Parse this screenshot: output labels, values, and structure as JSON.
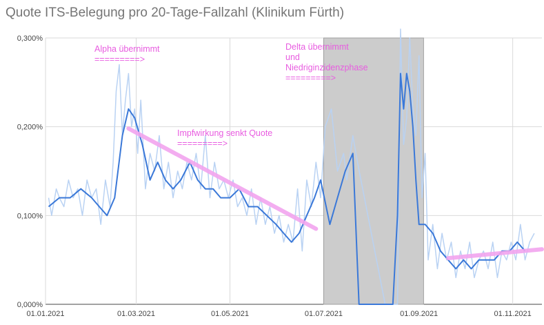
{
  "chart_data": {
    "type": "line",
    "title": "Quote ITS-Belegung pro 20-Tage-Fallzahl (Klinikum Fürth)",
    "xlabel": "",
    "ylabel": "",
    "ylim": [
      0,
      0.3
    ],
    "y_ticks": [
      "0,000%",
      "0,100%",
      "0,200%",
      "0,300%"
    ],
    "y_tick_values": [
      0,
      0.1,
      0.2,
      0.3
    ],
    "x_ticks": [
      "01.01.2021",
      "01.03.2021",
      "01.05.2021",
      "01.07.2021",
      "01.09.2021",
      "01.11.2021"
    ],
    "x_tick_dates": [
      "2021-01-01",
      "2021-03-01",
      "2021-05-01",
      "2021-07-01",
      "2021-09-01",
      "2021-11-01"
    ],
    "xlim": [
      "2021-01-01",
      "2021-11-20"
    ],
    "grid": true,
    "legend": "none",
    "colors": {
      "raw": "#b9d2f3",
      "smooth": "#3a78d8",
      "trend": "#f2a5ef",
      "annotation": "#e85ce0",
      "shade": "#cccccc",
      "shade_border": "#9e9e9e",
      "grid": "#d9d9d9"
    },
    "shaded_period": {
      "start": "2021-07-01",
      "end": "2021-09-04"
    },
    "series": [
      {
        "role": "raw",
        "x": [
          "2021-01-03",
          "2021-01-05",
          "2021-01-08",
          "2021-01-10",
          "2021-01-13",
          "2021-01-16",
          "2021-01-19",
          "2021-01-22",
          "2021-01-25",
          "2021-01-28",
          "2021-01-31",
          "2021-02-03",
          "2021-02-06",
          "2021-02-09",
          "2021-02-12",
          "2021-02-14",
          "2021-02-16",
          "2021-02-18",
          "2021-02-20",
          "2021-02-22",
          "2021-02-24",
          "2021-02-26",
          "2021-02-28",
          "2021-03-02",
          "2021-03-04",
          "2021-03-07",
          "2021-03-10",
          "2021-03-13",
          "2021-03-16",
          "2021-03-19",
          "2021-03-22",
          "2021-03-25",
          "2021-03-28",
          "2021-03-31",
          "2021-04-03",
          "2021-04-06",
          "2021-04-09",
          "2021-04-12",
          "2021-04-15",
          "2021-04-18",
          "2021-04-21",
          "2021-04-24",
          "2021-04-27",
          "2021-04-30",
          "2021-05-03",
          "2021-05-06",
          "2021-05-09",
          "2021-05-12",
          "2021-05-15",
          "2021-05-18",
          "2021-05-21",
          "2021-05-24",
          "2021-05-27",
          "2021-05-30",
          "2021-06-02",
          "2021-06-05",
          "2021-06-08",
          "2021-06-11",
          "2021-06-14",
          "2021-06-17",
          "2021-06-20",
          "2021-06-23",
          "2021-06-26",
          "2021-06-29",
          "2021-07-02",
          "2021-07-06",
          "2021-07-10",
          "2021-07-14",
          "2021-07-16",
          "2021-07-20",
          "2021-07-23",
          "2021-08-10",
          "2021-08-18",
          "2021-08-20",
          "2021-08-22",
          "2021-08-24",
          "2021-08-26",
          "2021-08-28",
          "2021-08-30",
          "2021-09-01",
          "2021-09-03",
          "2021-09-05",
          "2021-09-07",
          "2021-09-10",
          "2021-09-13",
          "2021-09-16",
          "2021-09-19",
          "2021-09-22",
          "2021-09-25",
          "2021-09-28",
          "2021-10-01",
          "2021-10-04",
          "2021-10-07",
          "2021-10-10",
          "2021-10-13",
          "2021-10-16",
          "2021-10-19",
          "2021-10-22",
          "2021-10-25",
          "2021-10-28",
          "2021-10-31",
          "2021-11-03",
          "2021-11-06",
          "2021-11-09",
          "2021-11-12",
          "2021-11-15"
        ],
        "y": [
          0.12,
          0.1,
          0.13,
          0.12,
          0.11,
          0.14,
          0.12,
          0.13,
          0.1,
          0.14,
          0.12,
          0.13,
          0.09,
          0.14,
          0.11,
          0.16,
          0.24,
          0.27,
          0.19,
          0.23,
          0.26,
          0.2,
          0.22,
          0.17,
          0.23,
          0.13,
          0.17,
          0.15,
          0.19,
          0.13,
          0.16,
          0.12,
          0.15,
          0.13,
          0.16,
          0.14,
          0.17,
          0.13,
          0.19,
          0.12,
          0.16,
          0.13,
          0.14,
          0.12,
          0.14,
          0.11,
          0.12,
          0.1,
          0.13,
          0.09,
          0.12,
          0.09,
          0.11,
          0.08,
          0.1,
          0.07,
          0.09,
          0.07,
          0.13,
          0.06,
          0.14,
          0.11,
          0.16,
          0.12,
          0.2,
          0.22,
          0.15,
          0.17,
          0.14,
          0.19,
          0.16,
          0.0,
          0.0,
          0.31,
          0.18,
          0.21,
          0.3,
          0.22,
          0.19,
          0.28,
          0.12,
          0.17,
          0.05,
          0.09,
          0.04,
          0.08,
          0.05,
          0.07,
          0.03,
          0.06,
          0.04,
          0.07,
          0.03,
          0.05,
          0.06,
          0.04,
          0.07,
          0.03,
          0.06,
          0.05,
          0.07,
          0.05,
          0.09,
          0.05,
          0.07,
          0.08
        ]
      },
      {
        "role": "smooth",
        "x": [
          "2021-01-03",
          "2021-01-10",
          "2021-01-17",
          "2021-01-24",
          "2021-01-31",
          "2021-02-05",
          "2021-02-10",
          "2021-02-15",
          "2021-02-20",
          "2021-02-24",
          "2021-02-28",
          "2021-03-05",
          "2021-03-10",
          "2021-03-15",
          "2021-03-20",
          "2021-03-25",
          "2021-03-30",
          "2021-04-05",
          "2021-04-10",
          "2021-04-15",
          "2021-04-20",
          "2021-04-25",
          "2021-05-01",
          "2021-05-07",
          "2021-05-13",
          "2021-05-19",
          "2021-05-25",
          "2021-05-31",
          "2021-06-05",
          "2021-06-10",
          "2021-06-15",
          "2021-06-20",
          "2021-06-25",
          "2021-06-29",
          "2021-07-05",
          "2021-07-10",
          "2021-07-15",
          "2021-07-20",
          "2021-07-24",
          "2021-08-15",
          "2021-08-18",
          "2021-08-20",
          "2021-08-22",
          "2021-08-24",
          "2021-08-26",
          "2021-08-28",
          "2021-08-30",
          "2021-09-01",
          "2021-09-05",
          "2021-09-10",
          "2021-09-15",
          "2021-09-20",
          "2021-09-25",
          "2021-09-30",
          "2021-10-05",
          "2021-10-10",
          "2021-10-15",
          "2021-10-20",
          "2021-10-25",
          "2021-10-30",
          "2021-11-04",
          "2021-11-09"
        ],
        "y": [
          0.11,
          0.12,
          0.12,
          0.13,
          0.12,
          0.11,
          0.1,
          0.12,
          0.19,
          0.22,
          0.21,
          0.18,
          0.14,
          0.16,
          0.14,
          0.13,
          0.14,
          0.16,
          0.14,
          0.13,
          0.13,
          0.12,
          0.12,
          0.13,
          0.11,
          0.11,
          0.1,
          0.09,
          0.08,
          0.07,
          0.08,
          0.1,
          0.12,
          0.14,
          0.09,
          0.12,
          0.15,
          0.17,
          0.0,
          0.0,
          0.1,
          0.26,
          0.22,
          0.26,
          0.24,
          0.2,
          0.14,
          0.09,
          0.09,
          0.08,
          0.06,
          0.05,
          0.04,
          0.05,
          0.04,
          0.05,
          0.05,
          0.05,
          0.06,
          0.06,
          0.07,
          0.06
        ]
      }
    ],
    "trend_lines": [
      {
        "x": [
          "2021-02-24",
          "2021-06-26"
        ],
        "y": [
          0.198,
          0.085
        ]
      },
      {
        "x": [
          "2021-09-20",
          "2021-11-20"
        ],
        "y": [
          0.052,
          0.062
        ]
      }
    ],
    "annotations": [
      {
        "lines": [
          "Alpha übernimmt",
          "=========>"
        ]
      },
      {
        "lines": [
          "Impfwirkung senkt Quote",
          "=========>"
        ]
      },
      {
        "lines": [
          "Delta übernimmt",
          "und",
          "Niedriginzidenzphase",
          "=========>"
        ]
      }
    ]
  }
}
